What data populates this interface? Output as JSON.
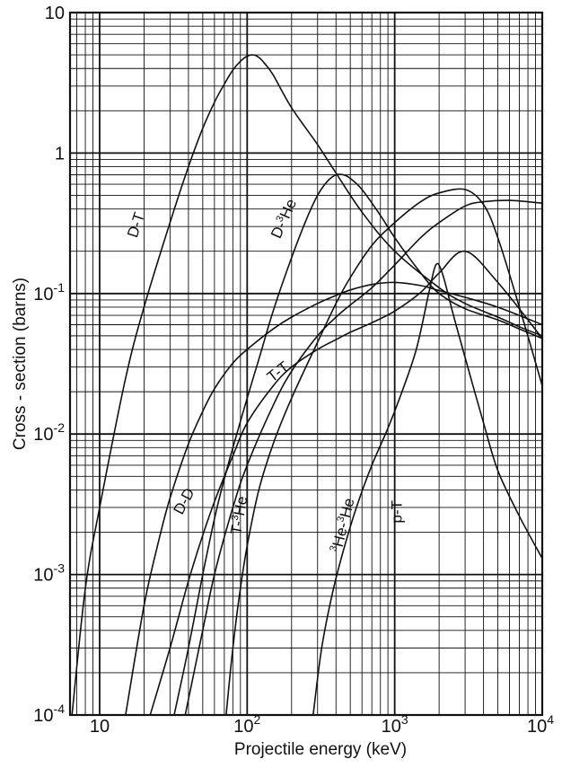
{
  "chart_data": {
    "type": "line",
    "x_scale": "log",
    "y_scale": "log",
    "xlim": [
      6.3,
      10000
    ],
    "ylim": [
      0.0001,
      10
    ],
    "grid": true,
    "xlabel": "Projectile energy (keV)",
    "ylabel": "Cross - section (barns)",
    "x_ticks": [
      {
        "value": 10,
        "label": "10"
      },
      {
        "value": 100,
        "label": "10",
        "exp": "2"
      },
      {
        "value": 1000,
        "label": "10",
        "exp": "3"
      },
      {
        "value": 10000,
        "label": "10",
        "exp": "4"
      }
    ],
    "y_ticks": [
      {
        "value": 10,
        "label": "10"
      },
      {
        "value": 1,
        "label": "1"
      },
      {
        "value": 0.1,
        "label": "10",
        "exp": "-1"
      },
      {
        "value": 0.01,
        "label": "10",
        "exp": "-2"
      },
      {
        "value": 0.001,
        "label": "10",
        "exp": "-3"
      },
      {
        "value": 0.0001,
        "label": "10",
        "exp": "-4"
      }
    ],
    "series": [
      {
        "name": "D-T",
        "label": {
          "pre": "",
          "sup": "",
          "post": "D-T",
          "x": 19,
          "y": 0.3,
          "angle": -72
        },
        "x": [
          6.5,
          8,
          10,
          15,
          20,
          30,
          40,
          50,
          60,
          70,
          80,
          90,
          100,
          110,
          120,
          130,
          150,
          200,
          300,
          400,
          600,
          1000,
          2000,
          3000,
          5000,
          7000,
          10000
        ],
        "y": [
          0.0001,
          0.0008,
          0.003,
          0.025,
          0.08,
          0.32,
          0.8,
          1.5,
          2.3,
          3.1,
          3.9,
          4.5,
          4.9,
          5.0,
          4.8,
          4.4,
          3.6,
          2.1,
          1.15,
          0.72,
          0.38,
          0.2,
          0.11,
          0.085,
          0.068,
          0.058,
          0.05
        ]
      },
      {
        "name": "D-3He",
        "label": {
          "pre": "D-",
          "sup": "3",
          "post": "He",
          "x": 190,
          "y": 0.33,
          "angle": -66
        },
        "x": [
          32,
          40,
          50,
          60,
          70,
          80,
          100,
          120,
          150,
          200,
          250,
          300,
          350,
          400,
          450,
          500,
          600,
          800,
          1000,
          1500,
          2000,
          3000,
          5000,
          7000,
          10000
        ],
        "y": [
          0.0001,
          0.0003,
          0.001,
          0.0025,
          0.0048,
          0.008,
          0.018,
          0.034,
          0.075,
          0.18,
          0.33,
          0.5,
          0.63,
          0.7,
          0.7,
          0.66,
          0.55,
          0.36,
          0.25,
          0.14,
          0.1,
          0.078,
          0.065,
          0.056,
          0.048
        ]
      },
      {
        "name": "D-D",
        "label": {
          "pre": "",
          "sup": "",
          "post": "D-D",
          "x": 40,
          "y": 0.0032,
          "angle": -62
        },
        "x": [
          15,
          20,
          25,
          30,
          40,
          50,
          60,
          80,
          100,
          150,
          200,
          300,
          400,
          500,
          700,
          1000,
          1500,
          2000,
          3000,
          5000,
          10000
        ],
        "y": [
          0.0001,
          0.0006,
          0.0017,
          0.0035,
          0.0085,
          0.0145,
          0.021,
          0.032,
          0.04,
          0.056,
          0.068,
          0.085,
          0.097,
          0.106,
          0.116,
          0.12,
          0.114,
          0.105,
          0.094,
          0.08,
          0.06
        ]
      },
      {
        "name": "T-T",
        "label": {
          "pre": "",
          "sup": "",
          "post": "T-T",
          "x": 170,
          "y": 0.026,
          "angle": -38
        },
        "x": [
          22,
          30,
          40,
          50,
          60,
          80,
          100,
          150,
          200,
          300,
          400,
          500,
          700,
          1000,
          1500,
          2000,
          3000,
          5000,
          10000
        ],
        "y": [
          0.0001,
          0.0003,
          0.0009,
          0.0019,
          0.0033,
          0.007,
          0.012,
          0.022,
          0.03,
          0.04,
          0.047,
          0.053,
          0.062,
          0.075,
          0.102,
          0.14,
          0.2,
          0.12,
          0.048
        ]
      },
      {
        "name": "T-3He",
        "label": {
          "pre": "T-",
          "sup": "3",
          "post": "He",
          "x": 95,
          "y": 0.0026,
          "angle": -80
        },
        "x": [
          38,
          50,
          60,
          80,
          100,
          150,
          200,
          300,
          400,
          500,
          700,
          1000,
          1500,
          2000,
          3000,
          4000,
          6000,
          10000
        ],
        "y": [
          0.0001,
          0.0004,
          0.001,
          0.003,
          0.006,
          0.016,
          0.028,
          0.05,
          0.068,
          0.083,
          0.11,
          0.16,
          0.25,
          0.32,
          0.42,
          0.45,
          0.46,
          0.44
        ]
      },
      {
        "name": "3He-3He",
        "label": {
          "pre": "",
          "sup": "3",
          "post": "He-",
          "sup2": "3",
          "post2": "He",
          "x": 480,
          "y": 0.0022,
          "angle": -76
        },
        "x": [
          72,
          80,
          90,
          100,
          120,
          150,
          200,
          300,
          400,
          500,
          700,
          1000,
          1500,
          2000,
          3000,
          4000,
          5000,
          7000,
          10000
        ],
        "y": [
          0.0001,
          0.0003,
          0.0008,
          0.0016,
          0.004,
          0.0085,
          0.018,
          0.045,
          0.085,
          0.13,
          0.22,
          0.32,
          0.45,
          0.52,
          0.55,
          0.43,
          0.25,
          0.08,
          0.022
        ]
      },
      {
        "name": "p-T",
        "label": {
          "pre": "",
          "sup": "",
          "post": "p-T",
          "x": 1120,
          "y": 0.0028,
          "angle": -90
        },
        "x": [
          280,
          320,
          380,
          450,
          550,
          700,
          900,
          1100,
          1400,
          1700,
          1900,
          2100,
          2500,
          3000,
          4000,
          5000,
          7000,
          10000
        ],
        "y": [
          0.0001,
          0.0003,
          0.00075,
          0.0015,
          0.003,
          0.006,
          0.011,
          0.019,
          0.04,
          0.1,
          0.16,
          0.14,
          0.07,
          0.035,
          0.012,
          0.0055,
          0.0026,
          0.0013
        ]
      }
    ]
  }
}
